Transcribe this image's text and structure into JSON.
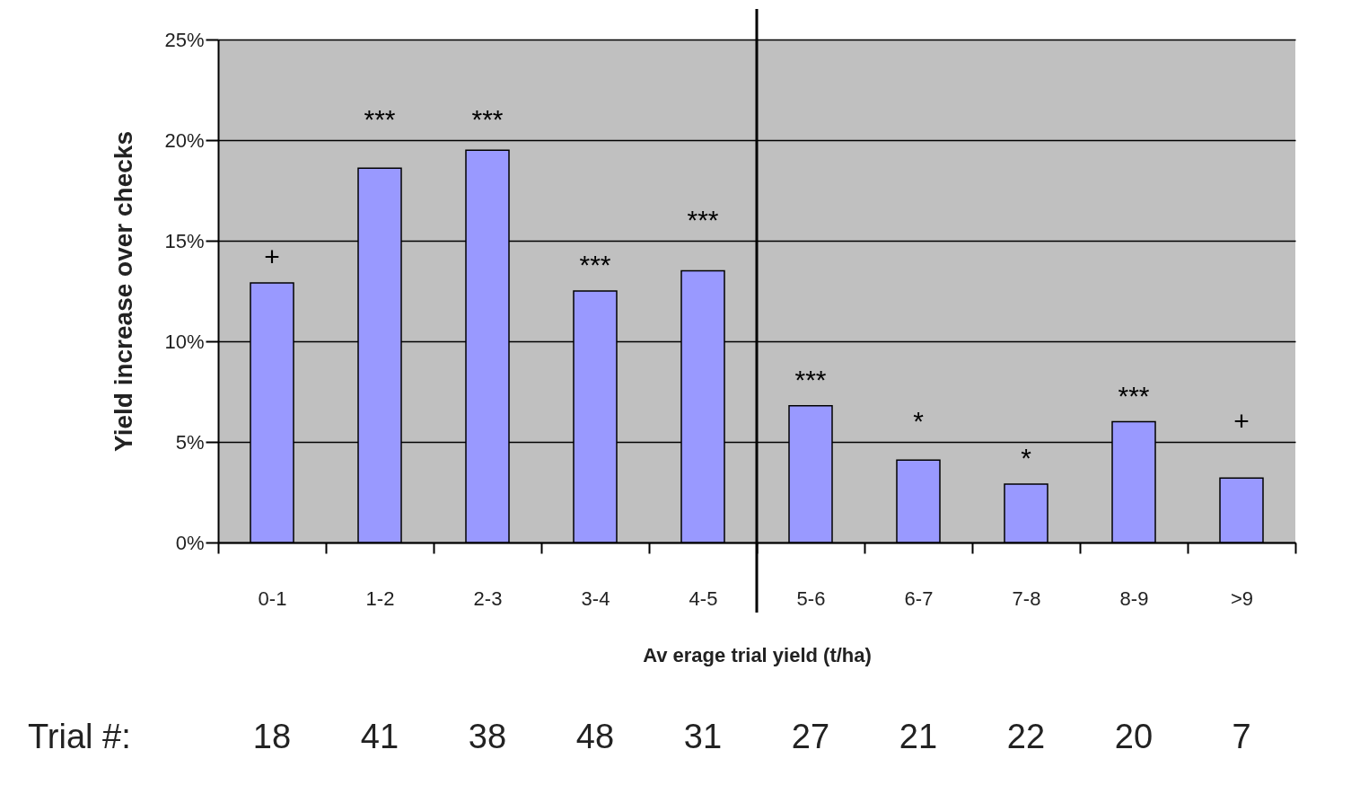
{
  "chart_data": {
    "type": "bar",
    "xlabel": "Av erage trial yield (t/ha)",
    "ylabel": "Yield increase over checks",
    "categories": [
      "0-1",
      "1-2",
      "2-3",
      "3-4",
      "4-5",
      "5-6",
      "6-7",
      "7-8",
      "8-9",
      ">9"
    ],
    "values": [
      12.9,
      18.6,
      19.5,
      12.5,
      13.5,
      6.8,
      4.1,
      2.9,
      6.0,
      3.2
    ],
    "color": "#9999ff",
    "ylim": [
      0,
      25
    ],
    "yticks": [
      {
        "value": 0,
        "label": "0%"
      },
      {
        "value": 5,
        "label": "5%"
      },
      {
        "value": 10,
        "label": "10%"
      },
      {
        "value": 15,
        "label": "15%"
      },
      {
        "value": 20,
        "label": "20%"
      },
      {
        "value": 25,
        "label": "25%"
      }
    ],
    "grid": "y",
    "ref_lines": [
      {
        "axis": "x",
        "value": "5-6"
      }
    ],
    "annotations": [
      "+",
      "***",
      "***",
      "***",
      "***",
      "***",
      "*",
      "*",
      "***",
      "+",
      "Trial #:",
      "18",
      "41",
      "38",
      "48",
      "31",
      "27",
      "21",
      "22",
      "20",
      "7"
    ]
  }
}
